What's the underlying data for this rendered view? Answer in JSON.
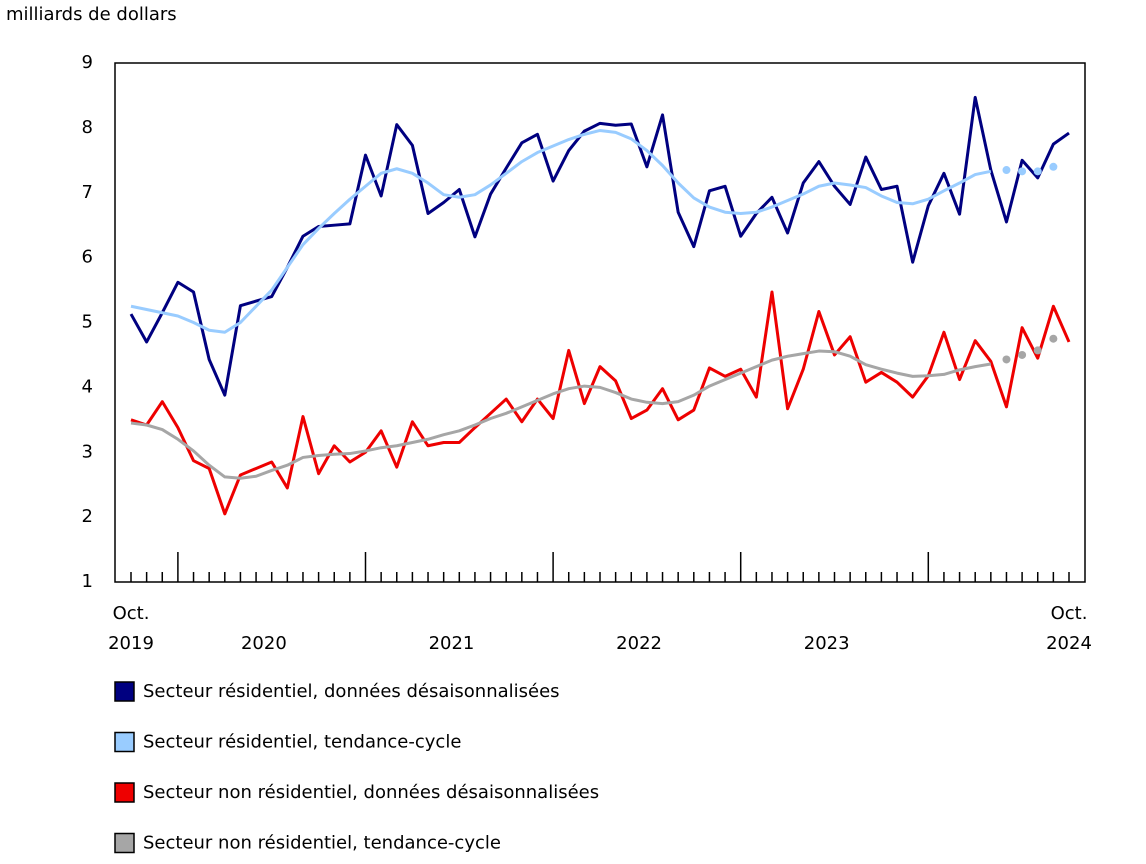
{
  "chart_data": {
    "type": "line",
    "y_axis_label": "milliards de dollars",
    "categories": [
      "Oct. 2019",
      null,
      null,
      null,
      null,
      null,
      null,
      null,
      null,
      null,
      null,
      null,
      null,
      null,
      null,
      null,
      null,
      null,
      null,
      null,
      null,
      null,
      null,
      null,
      null,
      null,
      null,
      null,
      null,
      null,
      null,
      null,
      null,
      null,
      null,
      null,
      null,
      null,
      null,
      null,
      null,
      null,
      null,
      null,
      null,
      null,
      null,
      null,
      null,
      null,
      null,
      null,
      null,
      null,
      null,
      null,
      null,
      null,
      null,
      null,
      "Oct. 2024"
    ],
    "year_labels": [
      "2020",
      "2021",
      "2022",
      "2023"
    ],
    "ylim": [
      1,
      9
    ],
    "yticks": [
      1,
      2,
      3,
      4,
      5,
      6,
      7,
      8,
      9
    ],
    "series": [
      {
        "name": "Secteur résidentiel, données désaisonnalisées",
        "color": "#000080",
        "values": [
          5.13,
          4.7,
          5.15,
          5.62,
          5.47,
          4.43,
          3.88,
          5.26,
          5.33,
          5.4,
          5.85,
          6.33,
          6.48,
          6.5,
          6.52,
          7.58,
          6.95,
          8.05,
          7.73,
          6.68,
          6.85,
          7.05,
          6.32,
          6.98,
          7.38,
          7.77,
          7.9,
          7.18,
          7.65,
          7.95,
          8.07,
          8.04,
          8.06,
          7.4,
          8.2,
          6.7,
          6.17,
          7.03,
          7.1,
          6.33,
          6.68,
          6.93,
          6.38,
          7.15,
          7.48,
          7.1,
          6.82,
          7.55,
          7.05,
          7.1,
          5.93,
          6.8,
          7.3,
          6.67,
          8.47,
          7.35,
          6.55,
          7.5,
          7.23,
          7.75,
          7.92
        ]
      },
      {
        "name": "Secteur résidentiel, tendance-cycle",
        "color": "#99ccff",
        "values": [
          5.25,
          5.2,
          5.15,
          5.1,
          5.0,
          4.88,
          4.85,
          5.0,
          5.25,
          5.5,
          5.85,
          6.2,
          6.45,
          6.68,
          6.9,
          7.1,
          7.3,
          7.37,
          7.3,
          7.15,
          6.97,
          6.93,
          6.97,
          7.12,
          7.3,
          7.48,
          7.62,
          7.72,
          7.82,
          7.9,
          7.96,
          7.93,
          7.83,
          7.65,
          7.42,
          7.15,
          6.92,
          6.78,
          6.7,
          6.68,
          6.7,
          6.78,
          6.88,
          6.98,
          7.1,
          7.15,
          7.12,
          7.08,
          6.95,
          6.85,
          6.83,
          6.9,
          7.03,
          7.15,
          7.28,
          7.33,
          null,
          null,
          null,
          null,
          null
        ],
        "projected": [
          null,
          null,
          null,
          null,
          null,
          null,
          null,
          null,
          null,
          null,
          null,
          null,
          null,
          null,
          null,
          null,
          null,
          null,
          null,
          null,
          null,
          null,
          null,
          null,
          null,
          null,
          null,
          null,
          null,
          null,
          null,
          null,
          null,
          null,
          null,
          null,
          null,
          null,
          null,
          null,
          null,
          null,
          null,
          null,
          null,
          null,
          null,
          null,
          null,
          null,
          null,
          null,
          null,
          null,
          null,
          null,
          7.35,
          7.33,
          7.33,
          7.4,
          null
        ]
      },
      {
        "name": "Secteur non résidentiel, données désaisonnalisées",
        "color": "#ee0000",
        "values": [
          3.5,
          3.42,
          3.78,
          3.38,
          2.87,
          2.75,
          2.05,
          2.65,
          2.75,
          2.85,
          2.45,
          3.55,
          2.67,
          3.1,
          2.85,
          3.0,
          3.33,
          2.77,
          3.47,
          3.1,
          3.15,
          3.15,
          3.38,
          3.6,
          3.82,
          3.47,
          3.82,
          3.52,
          4.57,
          3.75,
          4.32,
          4.1,
          3.52,
          3.65,
          3.98,
          3.5,
          3.65,
          4.3,
          4.17,
          4.28,
          3.85,
          5.47,
          3.67,
          4.28,
          5.17,
          4.5,
          4.78,
          4.08,
          4.23,
          4.08,
          3.85,
          4.18,
          4.85,
          4.12,
          4.72,
          4.4,
          3.7,
          4.92,
          4.45,
          5.25,
          4.7
        ]
      },
      {
        "name": "Secteur non résidentiel, tendance-cycle",
        "color": "#a6a6a6",
        "values": [
          3.45,
          3.42,
          3.35,
          3.2,
          3.02,
          2.8,
          2.62,
          2.6,
          2.63,
          2.72,
          2.8,
          2.92,
          2.95,
          2.97,
          2.98,
          3.02,
          3.07,
          3.1,
          3.15,
          3.2,
          3.27,
          3.33,
          3.42,
          3.52,
          3.6,
          3.7,
          3.8,
          3.9,
          3.98,
          4.02,
          4.0,
          3.92,
          3.82,
          3.77,
          3.75,
          3.78,
          3.88,
          4.02,
          4.12,
          4.22,
          4.32,
          4.42,
          4.48,
          4.52,
          4.56,
          4.55,
          4.48,
          4.35,
          4.28,
          4.22,
          4.17,
          4.18,
          4.2,
          4.27,
          4.32,
          4.36,
          null,
          null,
          null,
          null,
          null
        ],
        "projected": [
          null,
          null,
          null,
          null,
          null,
          null,
          null,
          null,
          null,
          null,
          null,
          null,
          null,
          null,
          null,
          null,
          null,
          null,
          null,
          null,
          null,
          null,
          null,
          null,
          null,
          null,
          null,
          null,
          null,
          null,
          null,
          null,
          null,
          null,
          null,
          null,
          null,
          null,
          null,
          null,
          null,
          null,
          null,
          null,
          null,
          null,
          null,
          null,
          null,
          null,
          null,
          null,
          null,
          null,
          null,
          null,
          4.43,
          4.5,
          4.57,
          4.75,
          null
        ]
      }
    ]
  }
}
